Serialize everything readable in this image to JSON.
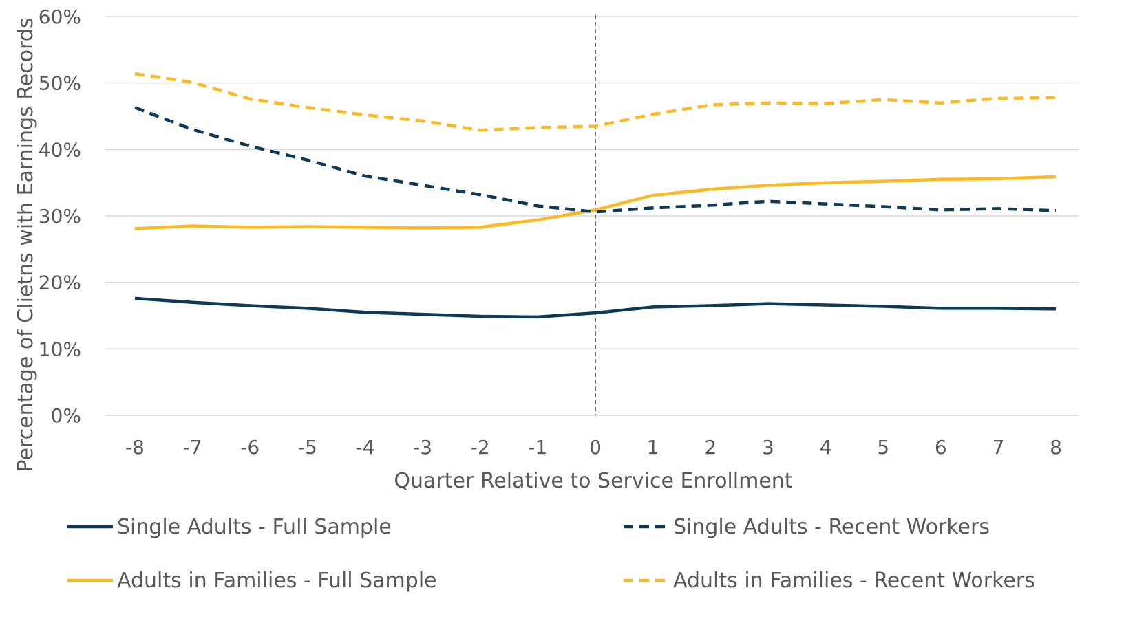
{
  "chart_data": {
    "type": "line",
    "title": "",
    "xlabel": "Quarter Relative to Service Enrollment",
    "ylabel": "Percentage of Clietns with Earnings Records",
    "x": [
      -8,
      -7,
      -6,
      -5,
      -4,
      -3,
      -2,
      -1,
      0,
      1,
      2,
      3,
      4,
      5,
      6,
      7,
      8
    ],
    "ylim": [
      0,
      60
    ],
    "yticks": [
      "0%",
      "10%",
      "20%",
      "30%",
      "40%",
      "50%",
      "60%"
    ],
    "grid": "horizontal",
    "reference_line_x": 0,
    "legend_position": "bottom",
    "series": [
      {
        "name": "Single Adults - Full Sample",
        "color": "#0E3A56",
        "dash": "solid",
        "values": [
          17.6,
          17.0,
          16.5,
          16.1,
          15.5,
          15.2,
          14.9,
          14.8,
          15.4,
          16.3,
          16.5,
          16.8,
          16.6,
          16.4,
          16.1,
          16.1,
          16.0
        ]
      },
      {
        "name": "Single Adults - Recent Workers",
        "color": "#0E3A56",
        "dash": "dashed",
        "values": [
          46.3,
          43.0,
          40.5,
          38.4,
          36.0,
          34.6,
          33.2,
          31.5,
          30.6,
          31.2,
          31.6,
          32.2,
          31.8,
          31.4,
          30.9,
          31.1,
          30.8
        ]
      },
      {
        "name": "Adults in Families - Full Sample",
        "color": "#FDB924",
        "dash": "solid",
        "values": [
          28.1,
          28.5,
          28.3,
          28.4,
          28.3,
          28.2,
          28.3,
          29.4,
          30.9,
          33.1,
          34.0,
          34.6,
          35.0,
          35.2,
          35.5,
          35.6,
          35.9
        ]
      },
      {
        "name": "Adults in Families - Recent Workers",
        "color": "#FDB924",
        "dash": "dashed",
        "values": [
          51.4,
          50.1,
          47.6,
          46.3,
          45.2,
          44.3,
          42.9,
          43.3,
          43.5,
          45.3,
          46.7,
          47.0,
          46.9,
          47.5,
          47.0,
          47.7,
          47.8
        ]
      }
    ]
  }
}
